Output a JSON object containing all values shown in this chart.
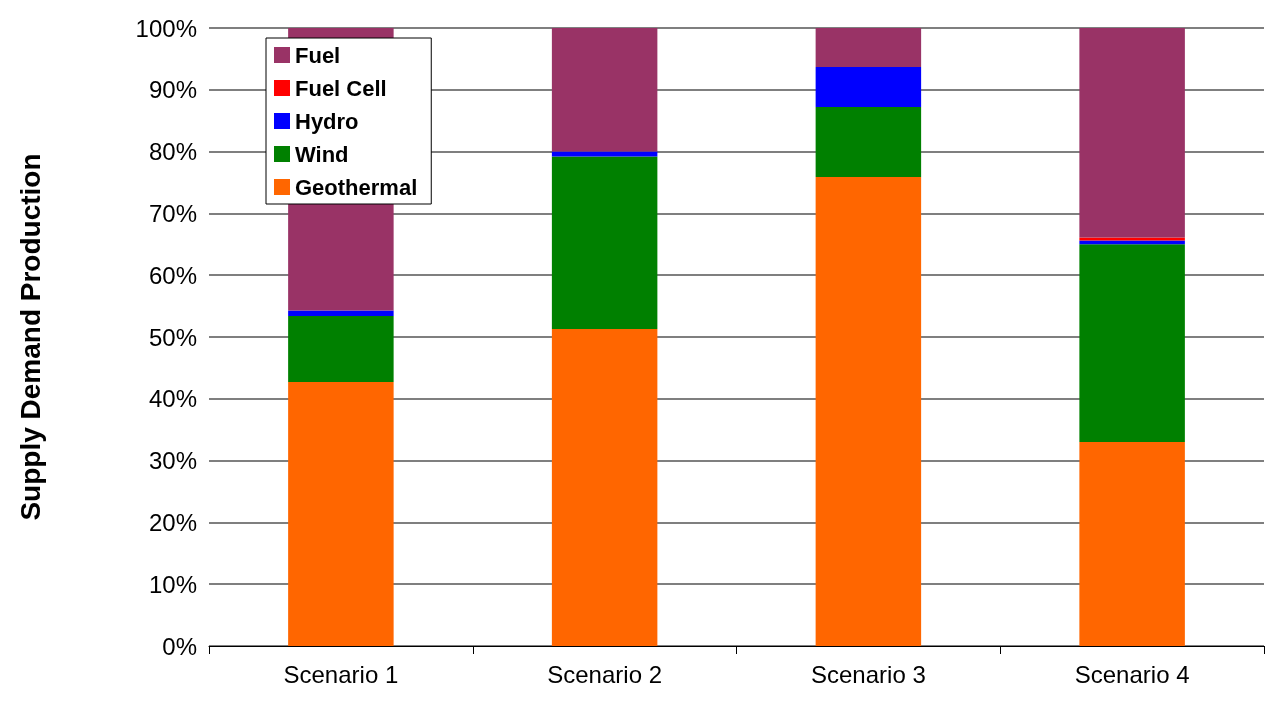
{
  "chart_data": {
    "type": "bar",
    "stacked": true,
    "ylabel": "Supply Demand Production",
    "categories": [
      "Scenario 1",
      "Scenario 2",
      "Scenario 3",
      "Scenario 4"
    ],
    "series": [
      {
        "name": "Geothermal",
        "color": "#ff6600",
        "values": [
          42.7,
          51.3,
          75.9,
          33.0
        ]
      },
      {
        "name": "Wind",
        "color": "#008000",
        "values": [
          10.7,
          27.9,
          11.3,
          32.0
        ]
      },
      {
        "name": "Hydro",
        "color": "#0000ff",
        "values": [
          0.9,
          0.8,
          6.5,
          0.6
        ]
      },
      {
        "name": "Fuel Cell",
        "color": "#ff0000",
        "values": [
          0,
          0,
          0,
          0.5
        ]
      },
      {
        "name": "Fuel",
        "color": "#993366",
        "values": [
          45.7,
          20.0,
          6.3,
          33.9
        ]
      }
    ],
    "ylim": [
      0,
      100
    ],
    "yticks": [
      {
        "value": 0,
        "label": "0%"
      },
      {
        "value": 10,
        "label": "10%"
      },
      {
        "value": 20,
        "label": "20%"
      },
      {
        "value": 30,
        "label": "30%"
      },
      {
        "value": 40,
        "label": "40%"
      },
      {
        "value": 50,
        "label": "50%"
      },
      {
        "value": 60,
        "label": "60%"
      },
      {
        "value": 70,
        "label": "70%"
      },
      {
        "value": 80,
        "label": "80%"
      },
      {
        "value": 90,
        "label": "90%"
      },
      {
        "value": 100,
        "label": "100%"
      }
    ],
    "grid": "y",
    "legend": "top left"
  }
}
